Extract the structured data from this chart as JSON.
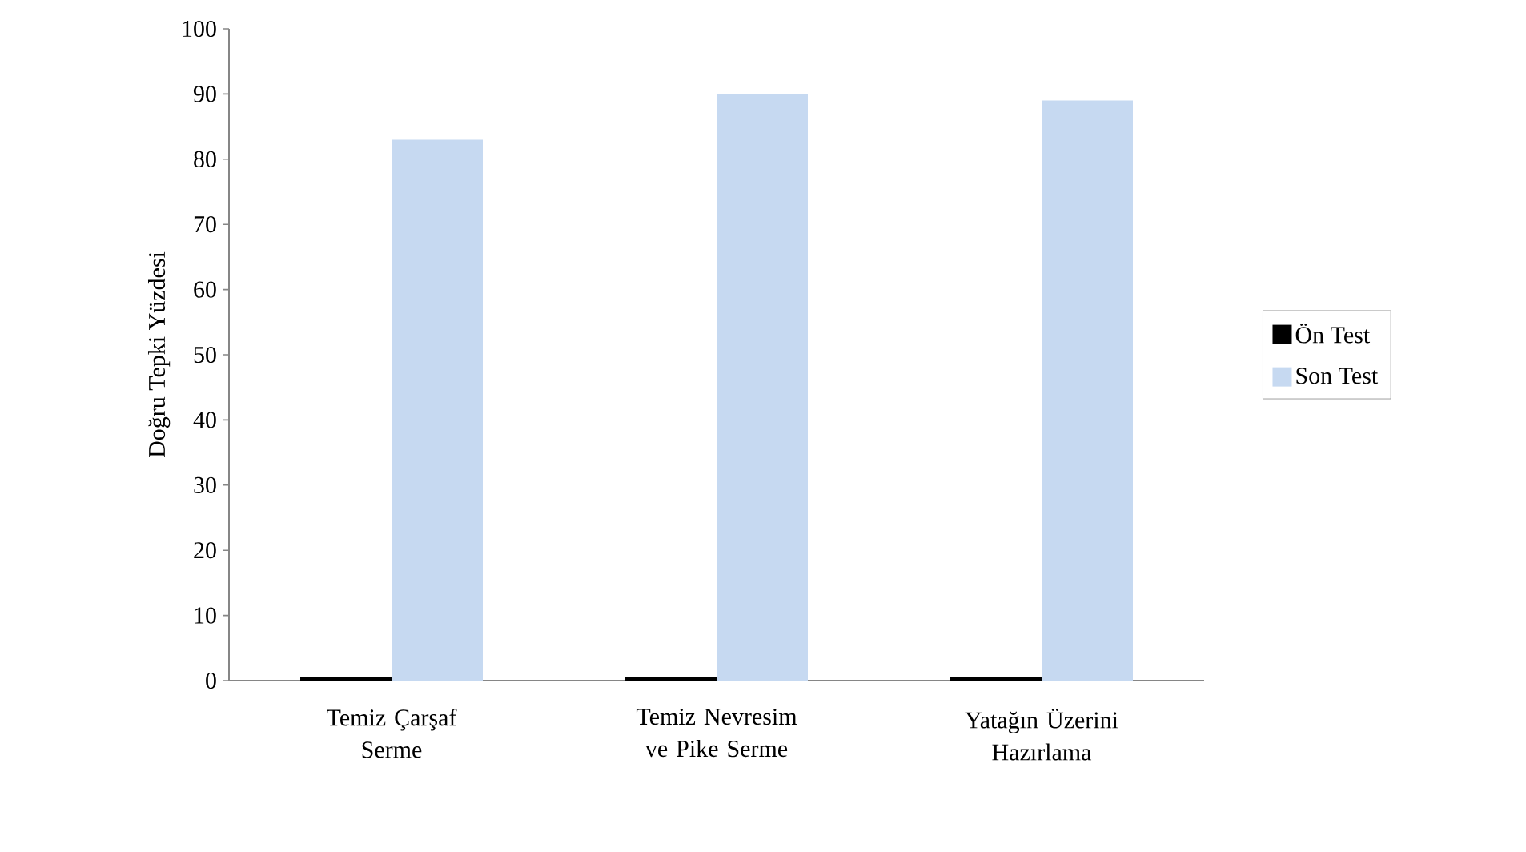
{
  "chart_data": {
    "type": "bar",
    "ylabel": "Doğru Tepki Yüzdesi",
    "categories": [
      "Temiz Çarşaf Serme",
      "Temiz Nevresim ve Pike Serme",
      "Yatağın Üzerini Hazırlama"
    ],
    "series": [
      {
        "name": "Ön Test",
        "color": "#000000",
        "values": [
          0.5,
          0.5,
          0.5
        ]
      },
      {
        "name": "Son Test",
        "color": "#c6d9f1",
        "values": [
          83,
          90,
          89
        ]
      }
    ],
    "ylim": [
      0,
      100
    ],
    "yticks": [
      0,
      10,
      20,
      30,
      40,
      50,
      60,
      70,
      80,
      90,
      100
    ],
    "grid": false,
    "legend": "right"
  }
}
